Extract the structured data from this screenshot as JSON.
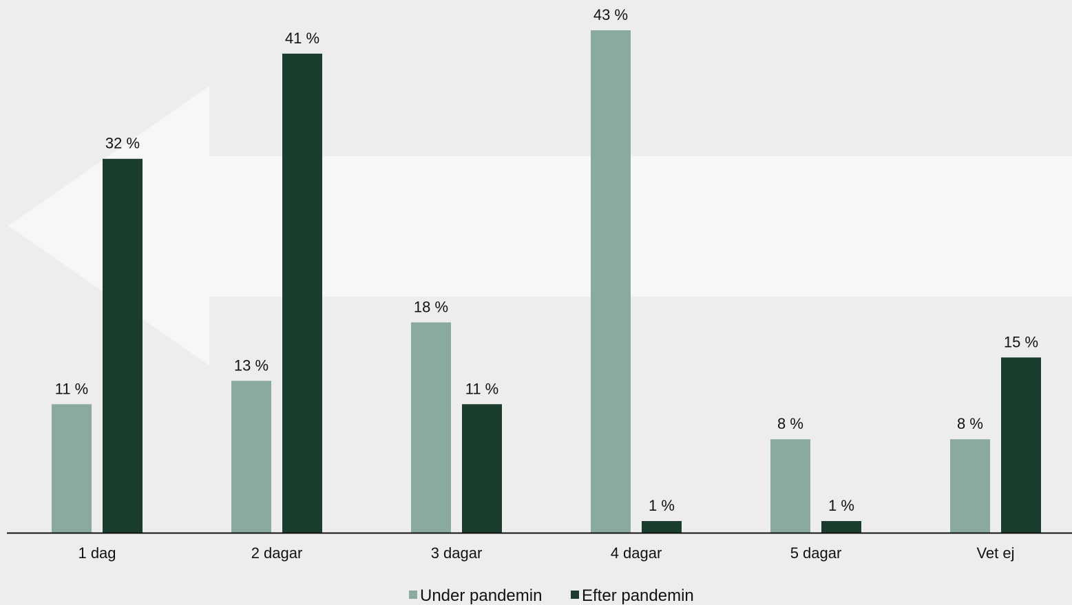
{
  "chart_data": {
    "type": "bar",
    "categories": [
      "1 dag",
      "2 dagar",
      "3 dagar",
      "4 dagar",
      "5 dagar",
      "Vet ej"
    ],
    "series": [
      {
        "name": "Under pandemin",
        "values": [
          11,
          13,
          18,
          43,
          8,
          8
        ],
        "labels": [
          "11 %",
          "13 %",
          "18 %",
          "43 %",
          "8 %",
          "8 %"
        ],
        "color": "#8aaa9f"
      },
      {
        "name": "Efter pandemin",
        "values": [
          32,
          41,
          11,
          1,
          1,
          15
        ],
        "labels": [
          "32 %",
          "41 %",
          "11 %",
          "1 %",
          "1 %",
          "15 %"
        ],
        "color": "#1b3d2d"
      }
    ],
    "title": "",
    "xlabel": "",
    "ylabel": "",
    "y_axis_visible": false,
    "grid": false,
    "legend_position": "bottom-center",
    "background_color": "#ededed",
    "background_arrow": {
      "direction": "left",
      "color": "#f7f7f7"
    }
  }
}
